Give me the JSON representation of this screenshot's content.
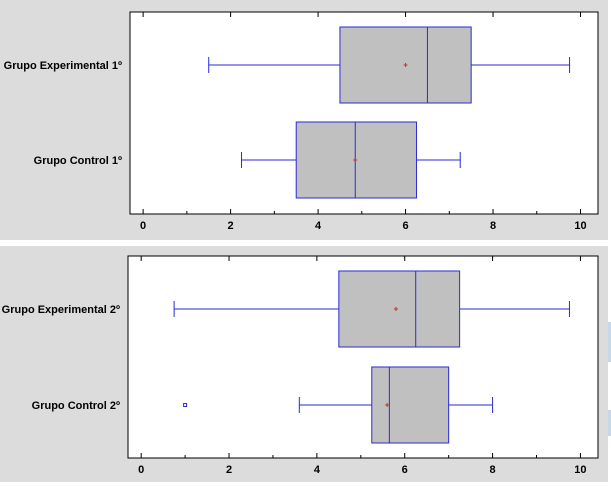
{
  "colors": {
    "panel_bg": "#dcdcdc",
    "plot_bg": "#ffffff",
    "box_fill": "#c0c0c0",
    "box_stroke": "#2a2ad8",
    "mean_marker": "#c8301e"
  },
  "chart_data": [
    {
      "type": "boxplot",
      "title": "",
      "xlabel": "",
      "xlim": [
        -0.3,
        10.4
      ],
      "xticks": [
        0,
        2,
        4,
        6,
        8,
        10
      ],
      "grid": false,
      "boxes": [
        {
          "label": "Grupo Experimental 1º",
          "whisker_low": 1.5,
          "q1": 4.5,
          "median": 6.5,
          "q3": 7.5,
          "whisker_high": 9.75,
          "mean": 6.0,
          "outliers": []
        },
        {
          "label": "Grupo Control 1º",
          "whisker_low": 2.25,
          "q1": 3.5,
          "median": 4.85,
          "q3": 6.25,
          "whisker_high": 7.25,
          "mean": 4.85,
          "outliers": []
        }
      ]
    },
    {
      "type": "boxplot",
      "title": "",
      "xlabel": "",
      "xlim": [
        -0.3,
        10.4
      ],
      "xticks": [
        0,
        2,
        4,
        6,
        8,
        10
      ],
      "grid": false,
      "boxes": [
        {
          "label": "Grupo Experimental 2º",
          "whisker_low": 0.75,
          "q1": 4.5,
          "median": 6.25,
          "q3": 7.25,
          "whisker_high": 9.75,
          "mean": 5.8,
          "outliers": []
        },
        {
          "label": "Grupo Control 2º",
          "whisker_low": 3.6,
          "q1": 5.25,
          "median": 5.65,
          "q3": 7.0,
          "whisker_high": 8.0,
          "mean": 5.6,
          "outliers": [
            1.0
          ]
        }
      ]
    }
  ]
}
